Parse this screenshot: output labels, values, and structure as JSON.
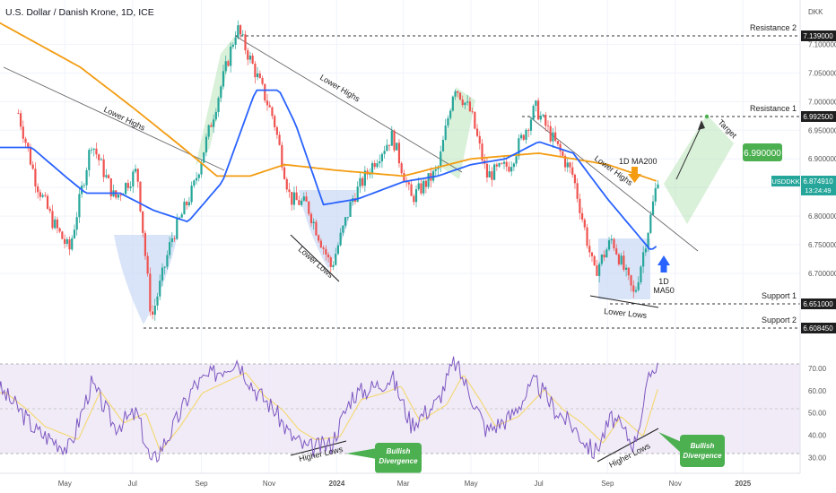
{
  "header": {
    "title": "U.S. Dollar / Danish Krone, 1D, ICE",
    "currency": "DKK"
  },
  "price_panel": {
    "ticker": "USDDKK",
    "last_price": "6.874910",
    "countdown": "13:24:49",
    "target_label": "Target",
    "target_value": "6.990000",
    "ma200_label": "1D MA200",
    "ma50_label_line1": "1D",
    "ma50_label_line2": "MA50"
  },
  "levels": [
    {
      "name": "Resistance 2",
      "value": "7.139000"
    },
    {
      "name": "Resistance 1",
      "value": "6.992500"
    },
    {
      "name": "Support 1",
      "value": "6.651000"
    },
    {
      "name": "Support 2",
      "value": "6.608450"
    }
  ],
  "annotations": {
    "lower_highs": "Lower Highs",
    "lower_lows": "Lower Lows",
    "higher_lows": "Higher Lows",
    "bullish_divergence_line1": "Bullish",
    "bullish_divergence_line2": "Divergence"
  },
  "colors": {
    "up": "#26a69a",
    "down": "#ef5350",
    "ma200": "#f39c12",
    "ma50": "#2962ff",
    "rsi": "#7e57c2",
    "rsi_signal": "#f5d76e",
    "green_zone": "#b9e4b9",
    "blue_zone": "#c9d8f5",
    "callout": "#4caf50"
  },
  "chart_data": [
    {
      "type": "candlestick",
      "title": "U.S. Dollar / Danish Krone, 1D, ICE",
      "x_tick_labels": [
        "May",
        "Jul",
        "Sep",
        "Nov",
        "2024",
        "Mar",
        "May",
        "Jul",
        "Sep",
        "Nov",
        "2025"
      ],
      "y_tick_labels": [
        "6.700000",
        "6.750000",
        "6.800000",
        "6.850000",
        "6.900000",
        "6.950000",
        "7.000000",
        "7.050000",
        "7.100000"
      ],
      "ylim": [
        6.595,
        7.165
      ],
      "path_points": [
        {
          "date": "2023-03-20",
          "price": 6.98
        },
        {
          "date": "2023-04-05",
          "price": 6.86
        },
        {
          "date": "2023-04-20",
          "price": 6.79
        },
        {
          "date": "2023-05-05",
          "price": 6.74
        },
        {
          "date": "2023-05-25",
          "price": 6.93
        },
        {
          "date": "2023-06-15",
          "price": 6.83
        },
        {
          "date": "2023-07-05",
          "price": 6.88
        },
        {
          "date": "2023-07-18",
          "price": 6.62
        },
        {
          "date": "2023-08-05",
          "price": 6.76
        },
        {
          "date": "2023-08-25",
          "price": 6.85
        },
        {
          "date": "2023-10-03",
          "price": 7.13
        },
        {
          "date": "2023-10-20",
          "price": 7.05
        },
        {
          "date": "2023-11-05",
          "price": 6.97
        },
        {
          "date": "2023-11-20",
          "price": 6.83
        },
        {
          "date": "2023-12-05",
          "price": 6.82
        },
        {
          "date": "2023-12-27",
          "price": 6.71
        },
        {
          "date": "2024-01-15",
          "price": 6.83
        },
        {
          "date": "2024-02-05",
          "price": 6.9
        },
        {
          "date": "2024-02-20",
          "price": 6.94
        },
        {
          "date": "2024-03-08",
          "price": 6.83
        },
        {
          "date": "2024-04-01",
          "price": 6.88
        },
        {
          "date": "2024-04-16",
          "price": 7.03
        },
        {
          "date": "2024-05-01",
          "price": 6.98
        },
        {
          "date": "2024-05-15",
          "price": 6.87
        },
        {
          "date": "2024-06-05",
          "price": 6.89
        },
        {
          "date": "2024-06-28",
          "price": 6.99
        },
        {
          "date": "2024-07-15",
          "price": 6.93
        },
        {
          "date": "2024-08-01",
          "price": 6.87
        },
        {
          "date": "2024-08-20",
          "price": 6.7
        },
        {
          "date": "2024-09-05",
          "price": 6.76
        },
        {
          "date": "2024-09-25",
          "price": 6.66
        },
        {
          "date": "2024-10-10",
          "price": 6.8
        },
        {
          "date": "2024-10-17",
          "price": 6.875
        }
      ],
      "ma200_points": [
        {
          "date": "2023-03-01",
          "price": 7.14
        },
        {
          "date": "2023-05-15",
          "price": 7.06
        },
        {
          "date": "2023-07-01",
          "price": 6.99
        },
        {
          "date": "2023-08-15",
          "price": 6.92
        },
        {
          "date": "2023-09-15",
          "price": 6.87
        },
        {
          "date": "2023-10-15",
          "price": 6.87
        },
        {
          "date": "2023-11-15",
          "price": 6.89
        },
        {
          "date": "2024-01-01",
          "price": 6.88
        },
        {
          "date": "2024-03-01",
          "price": 6.87
        },
        {
          "date": "2024-05-01",
          "price": 6.9
        },
        {
          "date": "2024-07-01",
          "price": 6.91
        },
        {
          "date": "2024-09-01",
          "price": 6.89
        },
        {
          "date": "2024-10-17",
          "price": 6.86
        }
      ],
      "ma50_points": [
        {
          "date": "2023-03-01",
          "price": 6.92
        },
        {
          "date": "2023-04-01",
          "price": 6.92
        },
        {
          "date": "2023-05-01",
          "price": 6.87
        },
        {
          "date": "2023-05-20",
          "price": 6.84
        },
        {
          "date": "2023-06-20",
          "price": 6.84
        },
        {
          "date": "2023-07-20",
          "price": 6.81
        },
        {
          "date": "2023-08-20",
          "price": 6.79
        },
        {
          "date": "2023-09-20",
          "price": 6.86
        },
        {
          "date": "2023-10-20",
          "price": 7.02
        },
        {
          "date": "2023-11-10",
          "price": 7.02
        },
        {
          "date": "2023-11-25",
          "price": 6.96
        },
        {
          "date": "2023-12-20",
          "price": 6.82
        },
        {
          "date": "2024-01-20",
          "price": 6.83
        },
        {
          "date": "2024-03-01",
          "price": 6.86
        },
        {
          "date": "2024-04-01",
          "price": 6.87
        },
        {
          "date": "2024-05-01",
          "price": 6.89
        },
        {
          "date": "2024-06-01",
          "price": 6.9
        },
        {
          "date": "2024-07-01",
          "price": 6.93
        },
        {
          "date": "2024-08-01",
          "price": 6.91
        },
        {
          "date": "2024-09-01",
          "price": 6.83
        },
        {
          "date": "2024-10-10",
          "price": 6.74
        },
        {
          "date": "2024-10-17",
          "price": 6.75
        }
      ],
      "target_price": 6.99
    },
    {
      "type": "line",
      "series": [
        {
          "values": []
        }
      ],
      "y_tick_labels": [
        "70.00",
        "60.00",
        "50.00",
        "40.00",
        "30.00"
      ],
      "ylim": [
        25,
        78
      ],
      "band": [
        30,
        70
      ],
      "rsi_points": [
        {
          "date": "2023-03-01",
          "value": 62
        },
        {
          "date": "2023-03-20",
          "value": 52
        },
        {
          "date": "2023-04-05",
          "value": 42
        },
        {
          "date": "2023-04-20",
          "value": 38
        },
        {
          "date": "2023-05-05",
          "value": 34
        },
        {
          "date": "2023-05-25",
          "value": 63
        },
        {
          "date": "2023-06-15",
          "value": 44
        },
        {
          "date": "2023-07-05",
          "value": 50
        },
        {
          "date": "2023-07-18",
          "value": 27
        },
        {
          "date": "2023-08-05",
          "value": 42
        },
        {
          "date": "2023-08-25",
          "value": 62
        },
        {
          "date": "2023-09-20",
          "value": 70
        },
        {
          "date": "2023-10-03",
          "value": 74
        },
        {
          "date": "2023-10-20",
          "value": 60
        },
        {
          "date": "2023-11-05",
          "value": 52
        },
        {
          "date": "2023-11-20",
          "value": 40
        },
        {
          "date": "2023-12-05",
          "value": 34
        },
        {
          "date": "2023-12-27",
          "value": 36
        },
        {
          "date": "2024-01-15",
          "value": 58
        },
        {
          "date": "2024-02-05",
          "value": 62
        },
        {
          "date": "2024-02-20",
          "value": 66
        },
        {
          "date": "2024-03-08",
          "value": 45
        },
        {
          "date": "2024-04-01",
          "value": 55
        },
        {
          "date": "2024-04-16",
          "value": 73
        },
        {
          "date": "2024-05-01",
          "value": 58
        },
        {
          "date": "2024-05-15",
          "value": 42
        },
        {
          "date": "2024-06-05",
          "value": 48
        },
        {
          "date": "2024-06-28",
          "value": 64
        },
        {
          "date": "2024-07-15",
          "value": 52
        },
        {
          "date": "2024-08-01",
          "value": 44
        },
        {
          "date": "2024-08-20",
          "value": 32
        },
        {
          "date": "2024-09-05",
          "value": 48
        },
        {
          "date": "2024-09-25",
          "value": 36
        },
        {
          "date": "2024-10-10",
          "value": 68
        },
        {
          "date": "2024-10-17",
          "value": 74
        }
      ]
    }
  ]
}
